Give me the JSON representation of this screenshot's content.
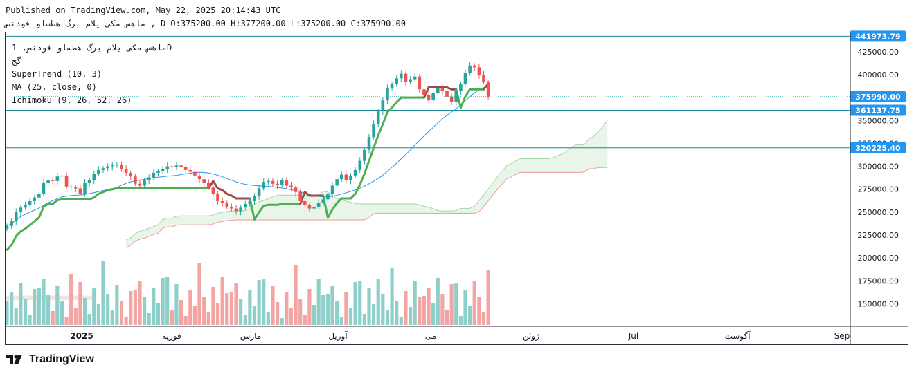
{
  "header": {
    "published": "Published on TradingView.com, May 22, 2025 20:14:43 UTC",
    "ohlc_line": "ماهس-مکی یلام برگ هطساو قودنص , D O:375200.00 H:377200.00 L:375200.00 C:375990.00"
  },
  "legend": {
    "symbol": "ماهس-مکی یلام برگ هطساو قودنص, 1D",
    "symbol_sub": "گج",
    "supertrend": "SuperTrend (10, 3)",
    "ma": "MA (25, close, 0)",
    "ichimoku": "Ichimoku (9, 26, 52, 26)"
  },
  "brand": {
    "name": "TradingView",
    "icon": "tradingview-logo-icon"
  },
  "colors": {
    "up": "#26a69a",
    "down": "#ef5350",
    "up_volume": "#8fcfc9",
    "down_volume": "#f3a5a4",
    "supertrend_up": "#4caf50",
    "supertrend_down": "#9c4a4a",
    "ma": "#2196f3",
    "cloud_bull": "#e6f4e6",
    "cloud_bear": "#f6e3e1",
    "price_tag": "#2196f3",
    "hline": "#1b8a96"
  },
  "chart_data": {
    "type": "candlestick",
    "interval": "1D",
    "y_axis": {
      "ticks": [
        "425000.00",
        "400000.00",
        "375000.00",
        "350000.00",
        "325000.00",
        "300000.00",
        "275000.00",
        "250000.00",
        "225000.00",
        "200000.00",
        "175000.00",
        "150000.00"
      ],
      "tick_values": [
        425000,
        400000,
        375000,
        350000,
        325000,
        300000,
        275000,
        250000,
        225000,
        200000,
        175000,
        150000
      ],
      "range": [
        127000,
        446000
      ]
    },
    "x_axis": {
      "labels": [
        "2025",
        "فوریه",
        "مارس",
        "آوریل",
        "می",
        "ژوئن",
        "Jul",
        "آگوست",
        "Sep"
      ]
    },
    "horizontal_lines": [
      {
        "label": "441973.79",
        "value": 441973.79
      },
      {
        "label": "361137.75",
        "value": 361137.75
      },
      {
        "label": "320225.40",
        "value": 320225.4
      }
    ],
    "last_price": {
      "label": "375990.00",
      "value": 375990
    },
    "candles_close": [
      235000,
      240000,
      250000,
      255000,
      258000,
      262000,
      266000,
      270000,
      282000,
      285000,
      284000,
      289000,
      290000,
      278000,
      277000,
      276000,
      270000,
      282000,
      285000,
      292000,
      296000,
      298000,
      300000,
      301000,
      302000,
      297000,
      293000,
      289000,
      281000,
      279000,
      285000,
      288000,
      293000,
      295000,
      297000,
      300000,
      299000,
      301000,
      299000,
      296000,
      294000,
      290000,
      286000,
      282000,
      277000,
      270000,
      262000,
      260000,
      256000,
      254000,
      251000,
      255000,
      259000,
      262000,
      268000,
      276000,
      283000,
      284000,
      281000,
      280000,
      285000,
      279000,
      277000,
      272000,
      262000,
      258000,
      254000,
      256000,
      260000,
      264000,
      270000,
      279000,
      286000,
      291000,
      285000,
      290000,
      296000,
      306000,
      318000,
      332000,
      346000,
      360000,
      372000,
      385000,
      390000,
      396000,
      401000,
      392000,
      395000,
      398000,
      384000,
      378000,
      372000,
      380000,
      385000,
      382000,
      376000,
      370000,
      382000,
      390000,
      402000,
      410000,
      408000,
      400000,
      392000,
      375990
    ]
  }
}
